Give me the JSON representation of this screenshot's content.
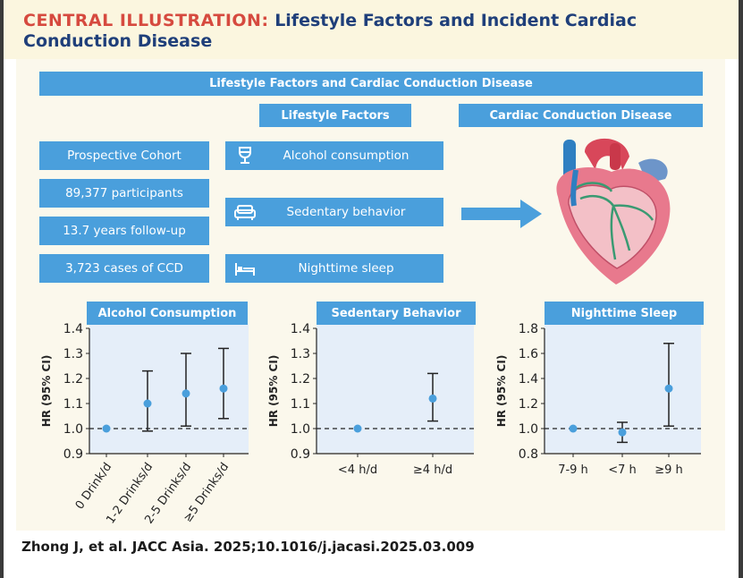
{
  "title": {
    "prefix": "CENTRAL ILLUSTRATION:",
    "text": "Lifestyle Factors and Incident Cardiac Conduction Disease"
  },
  "banner": "Lifestyle Factors and Cardiac Conduction Disease",
  "headers": {
    "factors": "Lifestyle Factors",
    "disease": "Cardiac Conduction Disease"
  },
  "cohort": [
    "Prospective Cohort",
    "89,377 participants",
    "13.7 years follow-up",
    "3,723 cases of CCD"
  ],
  "factors": [
    {
      "label": "Alcohol consumption",
      "icon": "wine-glass-icon"
    },
    {
      "label": "Sedentary behavior",
      "icon": "sofa-icon"
    },
    {
      "label": "Nighttime sleep",
      "icon": "bed-icon"
    }
  ],
  "colors": {
    "accent": "#4a9fdc",
    "title_red": "#d64a3f",
    "title_blue": "#1f3f7a",
    "point": "#4a9fdc"
  },
  "chart_data": [
    {
      "type": "scatter",
      "title": "Alcohol Consumption",
      "ylabel": "HR (95% CI)",
      "ylim": [
        0.9,
        1.4
      ],
      "yticks": [
        "0.9",
        "1.0",
        "1.1",
        "1.2",
        "1.3",
        "1.4"
      ],
      "reference": 1.0,
      "categories": [
        "0 Drink/d",
        "1-2 Drinks/d",
        "2-5 Drinks/d",
        "≥5 Drinks/d"
      ],
      "values": [
        1.0,
        1.1,
        1.14,
        1.16
      ],
      "lower": [
        null,
        0.99,
        1.01,
        1.04
      ],
      "upper": [
        null,
        1.23,
        1.3,
        1.32
      ]
    },
    {
      "type": "scatter",
      "title": "Sedentary Behavior",
      "ylabel": "HR (95% CI)",
      "ylim": [
        0.9,
        1.4
      ],
      "yticks": [
        "0.9",
        "1.0",
        "1.1",
        "1.2",
        "1.3",
        "1.4"
      ],
      "reference": 1.0,
      "categories": [
        "<4 h/d",
        "≥4 h/d"
      ],
      "values": [
        1.0,
        1.12
      ],
      "lower": [
        null,
        1.03
      ],
      "upper": [
        null,
        1.22
      ]
    },
    {
      "type": "scatter",
      "title": "Nighttime Sleep",
      "ylabel": "HR (95% CI)",
      "ylim": [
        0.8,
        1.8
      ],
      "yticks": [
        "0.8",
        "1.0",
        "1.2",
        "1.4",
        "1.6",
        "1.8"
      ],
      "reference": 1.0,
      "categories": [
        "7-9 h",
        "<7 h",
        "≥9 h"
      ],
      "values": [
        1.0,
        0.97,
        1.32
      ],
      "lower": [
        null,
        0.89,
        1.02
      ],
      "upper": [
        null,
        1.05,
        1.68
      ]
    }
  ],
  "citation": "Zhong J, et al. JACC Asia. 2025;10.1016/j.jacasi.2025.03.009"
}
